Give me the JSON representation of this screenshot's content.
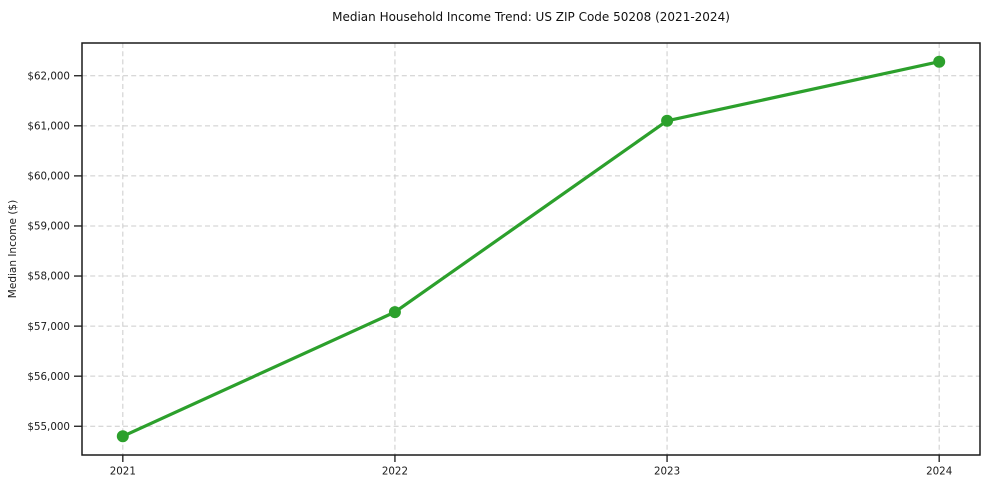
{
  "chart_data": {
    "type": "line",
    "title": "Median Household Income Trend: US ZIP Code 50208 (2021-2024)",
    "xlabel": "",
    "ylabel": "Median Income ($)",
    "x": [
      2021,
      2022,
      2023,
      2024
    ],
    "xtick_labels": [
      "2021",
      "2022",
      "2023",
      "2024"
    ],
    "series": [
      {
        "name": "Median Household Income",
        "values": [
          54800,
          57280,
          61100,
          62280
        ]
      }
    ],
    "ytick_values": [
      55000,
      56000,
      57000,
      58000,
      59000,
      60000,
      61000,
      62000
    ],
    "ytick_labels": [
      "$55,000",
      "$56,000",
      "$57,000",
      "$58,000",
      "$59,000",
      "$60,000",
      "$61,000",
      "$62,000"
    ],
    "xlim": [
      2020.85,
      2024.15
    ],
    "ylim": [
      54426,
      62654
    ],
    "grid": true,
    "grid_style": "dashed",
    "legend_position": "none",
    "line_color": "#2ca02c",
    "marker_color": "#2ca02c",
    "marker": "circle",
    "grid_color": "#cccccc",
    "spine_color": "#1a1a1a",
    "background_color": "#ffffff"
  }
}
